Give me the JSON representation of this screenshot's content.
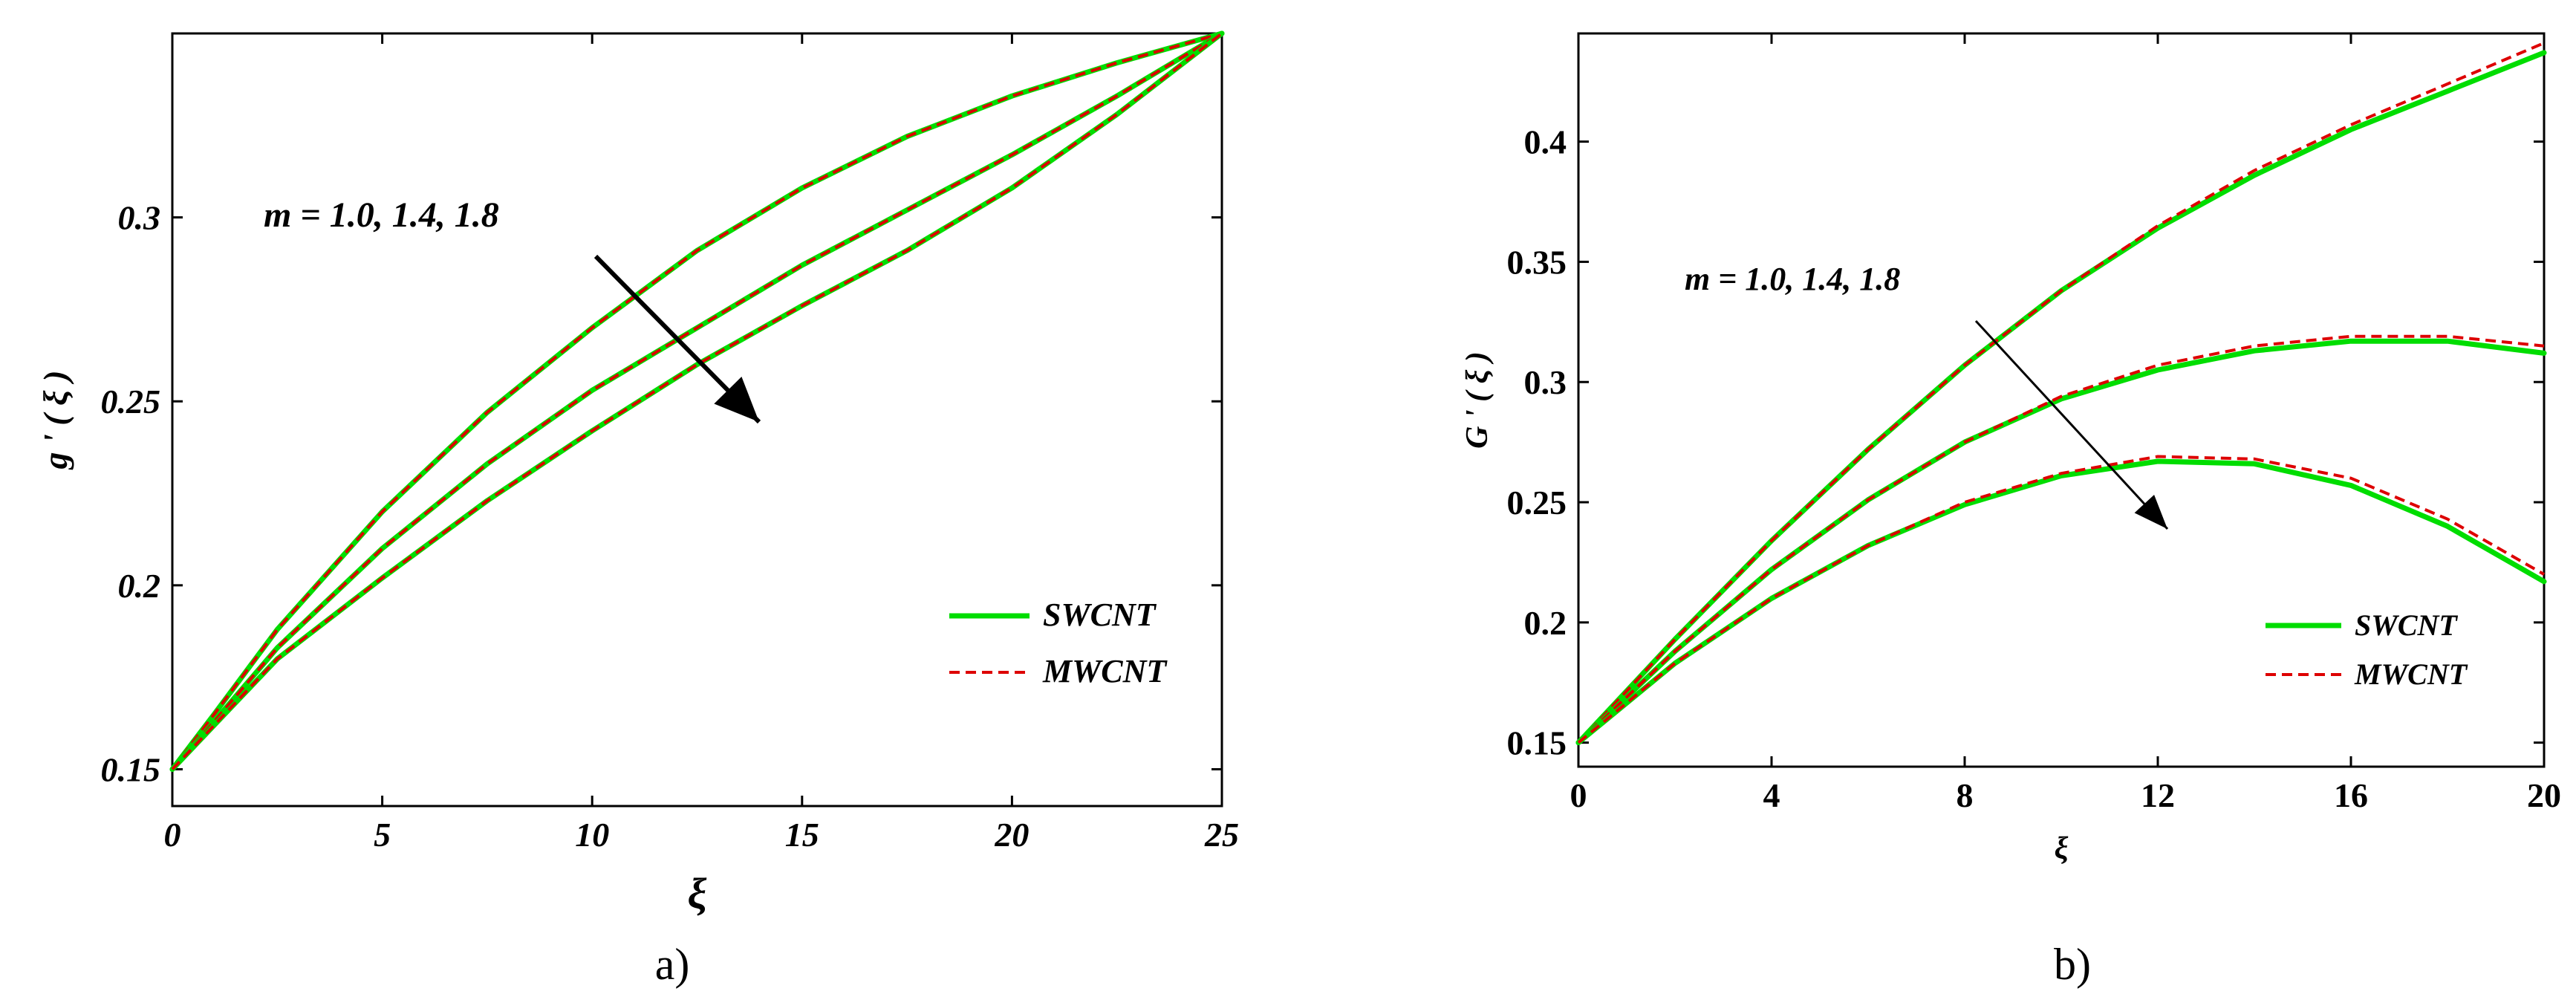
{
  "chart_data": [
    {
      "type": "line",
      "caption": "a)",
      "xlabel": "ξ",
      "ylabel": "g ' ( ξ )",
      "xlim": [
        0,
        25
      ],
      "ylim": [
        0.14,
        0.35
      ],
      "xticks": [
        "0",
        "5",
        "10",
        "15",
        "20",
        "25"
      ],
      "yticks": [
        "0.15",
        "0.2",
        "0.25",
        "0.3"
      ],
      "annotation": "m = 1.0, 1.4, 1.8",
      "legend": {
        "placement": "bottom-right",
        "entries": [
          "SWCNT",
          "MWCNT"
        ]
      },
      "series_colors": {
        "SWCNT": "#00dd00",
        "MWCNT": "#dd0000"
      },
      "series": [
        {
          "m": "1.0",
          "x": [
            0,
            1,
            2.5,
            5,
            7.5,
            10,
            12.5,
            15,
            17.5,
            20,
            22.5,
            25
          ],
          "SWCNT": [
            0.15,
            0.165,
            0.188,
            0.22,
            0.247,
            0.27,
            0.291,
            0.308,
            0.322,
            0.333,
            0.342,
            0.35
          ],
          "MWCNT": [
            0.15,
            0.165,
            0.188,
            0.22,
            0.247,
            0.27,
            0.291,
            0.308,
            0.322,
            0.333,
            0.342,
            0.35
          ]
        },
        {
          "m": "1.4",
          "x": [
            0,
            1,
            2.5,
            5,
            7.5,
            10,
            12.5,
            15,
            17.5,
            20,
            22.5,
            25
          ],
          "SWCNT": [
            0.15,
            0.163,
            0.183,
            0.21,
            0.233,
            0.253,
            0.27,
            0.287,
            0.302,
            0.317,
            0.333,
            0.35
          ],
          "MWCNT": [
            0.15,
            0.163,
            0.183,
            0.21,
            0.233,
            0.253,
            0.27,
            0.287,
            0.302,
            0.317,
            0.333,
            0.35
          ]
        },
        {
          "m": "1.8",
          "x": [
            0,
            1,
            2.5,
            5,
            7.5,
            10,
            12.5,
            15,
            17.5,
            20,
            22.5,
            25
          ],
          "SWCNT": [
            0.15,
            0.162,
            0.18,
            0.202,
            0.223,
            0.242,
            0.26,
            0.276,
            0.291,
            0.308,
            0.328,
            0.35
          ],
          "MWCNT": [
            0.15,
            0.162,
            0.18,
            0.202,
            0.223,
            0.242,
            0.26,
            0.276,
            0.291,
            0.308,
            0.328,
            0.35
          ]
        }
      ]
    },
    {
      "type": "line",
      "caption": "b)",
      "xlabel": "ξ",
      "ylabel": "G ' ( ξ )",
      "xlim": [
        0,
        20
      ],
      "ylim": [
        0.14,
        0.445
      ],
      "xticks": [
        "0",
        "4",
        "8",
        "12",
        "16",
        "20"
      ],
      "yticks": [
        "0.15",
        "0.2",
        "0.25",
        "0.3",
        "0.35",
        "0.4"
      ],
      "annotation": "m = 1.0, 1.4, 1.8",
      "legend": {
        "placement": "bottom-right",
        "entries": [
          "SWCNT",
          "MWCNT"
        ]
      },
      "series_colors": {
        "SWCNT": "#00dd00",
        "MWCNT": "#dd0000"
      },
      "series": [
        {
          "m": "1.0",
          "x": [
            0,
            2,
            4,
            6,
            8,
            10,
            12,
            14,
            16,
            18,
            20
          ],
          "SWCNT": [
            0.15,
            0.193,
            0.234,
            0.272,
            0.307,
            0.338,
            0.364,
            0.386,
            0.405,
            0.421,
            0.437
          ],
          "MWCNT": [
            0.15,
            0.193,
            0.234,
            0.272,
            0.307,
            0.338,
            0.365,
            0.388,
            0.407,
            0.424,
            0.441
          ]
        },
        {
          "m": "1.4",
          "x": [
            0,
            2,
            4,
            6,
            8,
            10,
            12,
            14,
            16,
            18,
            20
          ],
          "SWCNT": [
            0.15,
            0.188,
            0.222,
            0.251,
            0.275,
            0.293,
            0.305,
            0.313,
            0.317,
            0.317,
            0.312
          ],
          "MWCNT": [
            0.15,
            0.188,
            0.222,
            0.251,
            0.275,
            0.294,
            0.307,
            0.315,
            0.319,
            0.319,
            0.315
          ]
        },
        {
          "m": "1.8",
          "x": [
            0,
            2,
            4,
            6,
            8,
            10,
            12,
            14,
            16,
            18,
            20
          ],
          "SWCNT": [
            0.15,
            0.183,
            0.21,
            0.232,
            0.249,
            0.261,
            0.267,
            0.266,
            0.257,
            0.24,
            0.217
          ],
          "MWCNT": [
            0.15,
            0.183,
            0.21,
            0.232,
            0.25,
            0.262,
            0.269,
            0.268,
            0.26,
            0.243,
            0.22
          ]
        }
      ]
    }
  ]
}
